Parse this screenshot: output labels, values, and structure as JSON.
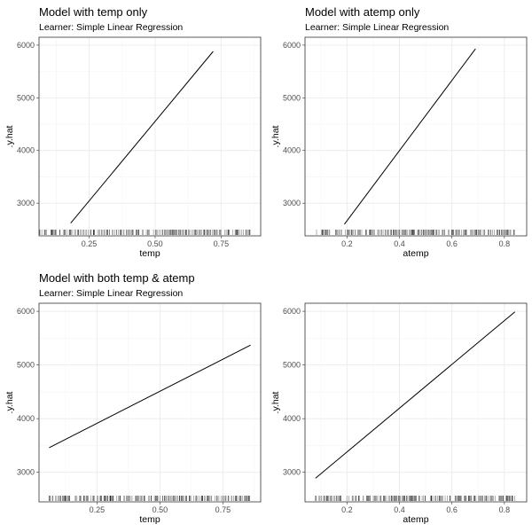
{
  "chart_data": [
    {
      "type": "line",
      "title": "Model with temp only",
      "subtitle": "Learner: Simple Linear Regression",
      "xlabel": "temp",
      "ylabel": ".y.hat",
      "xlim": [
        0.06,
        0.9
      ],
      "ylim": [
        2380,
        6150
      ],
      "xticks": [
        0.25,
        0.5,
        0.75
      ],
      "xtick_labels": [
        "0.25",
        "0.50",
        "0.75"
      ],
      "yticks": [
        3000,
        4000,
        5000,
        6000
      ],
      "ytick_labels": [
        "3000",
        "4000",
        "5000",
        "6000"
      ],
      "series": [
        {
          "x": [
            0.18,
            0.72
          ],
          "y": [
            2620,
            5880
          ]
        }
      ],
      "rug_range": [
        0.06,
        0.86
      ],
      "grid": true
    },
    {
      "type": "line",
      "title": "Model with atemp only",
      "subtitle": "Learner: Simple Linear Regression",
      "xlabel": "atemp",
      "ylabel": ".y.hat",
      "xlim": [
        0.04,
        0.885
      ],
      "ylim": [
        2380,
        6150
      ],
      "xticks": [
        0.2,
        0.4,
        0.6,
        0.8
      ],
      "xtick_labels": [
        "0.2",
        "0.4",
        "0.6",
        "0.8"
      ],
      "yticks": [
        3000,
        4000,
        5000,
        6000
      ],
      "ytick_labels": [
        "3000",
        "4000",
        "5000",
        "6000"
      ],
      "series": [
        {
          "x": [
            0.19,
            0.69
          ],
          "y": [
            2600,
            5930
          ]
        }
      ],
      "rug_range": [
        0.08,
        0.84
      ],
      "grid": true
    },
    {
      "type": "line",
      "title": "Model with both temp & atemp",
      "subtitle": "Learner: Simple Linear Regression",
      "xlabel": "temp",
      "ylabel": ".y.hat",
      "xlim": [
        0.02,
        0.9
      ],
      "ylim": [
        2450,
        6150
      ],
      "xticks": [
        0.25,
        0.5,
        0.75
      ],
      "xtick_labels": [
        "0.25",
        "0.50",
        "0.75"
      ],
      "yticks": [
        3000,
        4000,
        5000,
        6000
      ],
      "ytick_labels": [
        "3000",
        "4000",
        "5000",
        "6000"
      ],
      "series": [
        {
          "x": [
            0.06,
            0.86
          ],
          "y": [
            3460,
            5370
          ]
        }
      ],
      "rug_range": [
        0.06,
        0.86
      ],
      "grid": true
    },
    {
      "type": "line",
      "title": "",
      "subtitle": "",
      "xlabel": "atemp",
      "ylabel": ".y.hat",
      "xlim": [
        0.04,
        0.885
      ],
      "ylim": [
        2450,
        6150
      ],
      "xticks": [
        0.2,
        0.4,
        0.6,
        0.8
      ],
      "xtick_labels": [
        "0.2",
        "0.4",
        "0.6",
        "0.8"
      ],
      "yticks": [
        3000,
        4000,
        5000,
        6000
      ],
      "ytick_labels": [
        "3000",
        "4000",
        "5000",
        "6000"
      ],
      "series": [
        {
          "x": [
            0.08,
            0.84
          ],
          "y": [
            2890,
            5990
          ]
        }
      ],
      "rug_range": [
        0.08,
        0.84
      ],
      "grid": true
    }
  ]
}
